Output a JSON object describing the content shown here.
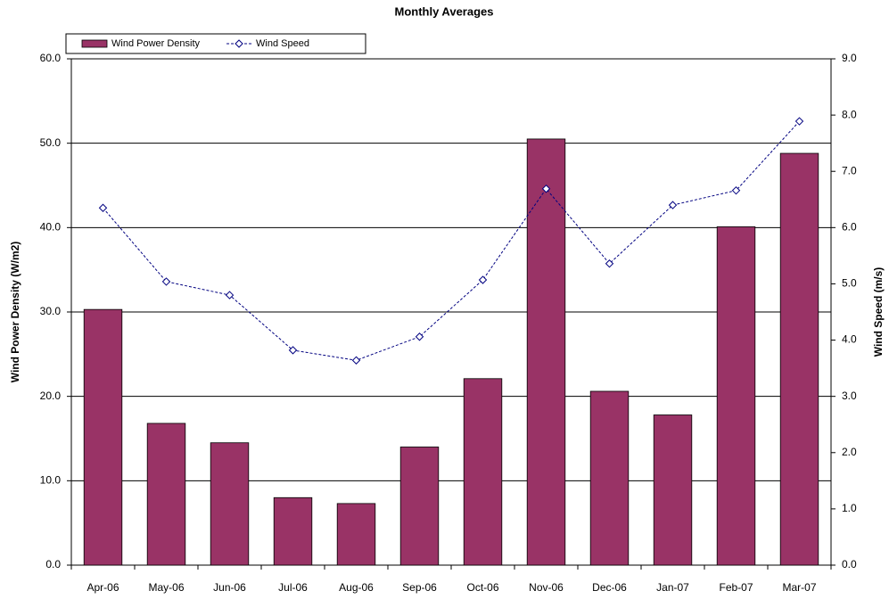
{
  "chart_data": {
    "type": "bar",
    "title": "Monthly Averages",
    "categories": [
      "Apr-06",
      "May-06",
      "Jun-06",
      "Jul-06",
      "Aug-06",
      "Sep-06",
      "Oct-06",
      "Nov-06",
      "Dec-06",
      "Jan-07",
      "Feb-07",
      "Mar-07"
    ],
    "series": [
      {
        "name": "Wind Power Density",
        "type": "bar",
        "color": "#993366",
        "values": [
          30.3,
          16.8,
          14.5,
          8.0,
          7.3,
          14.0,
          22.1,
          50.5,
          20.6,
          17.8,
          40.1,
          48.8
        ]
      },
      {
        "name": "Wind Speed",
        "type": "line",
        "axis": "y2",
        "color": "#000080",
        "marker": "diamond",
        "values": [
          6.35,
          5.04,
          4.8,
          3.82,
          3.64,
          4.06,
          5.07,
          6.69,
          5.36,
          6.4,
          6.66,
          7.89
        ]
      }
    ],
    "ylabel": "Wind Power Density (W/m2)",
    "y2label": "Wind Speed (m/s)",
    "ylim": [
      0,
      60
    ],
    "yticks": [
      {
        "value": 0,
        "label": "0.0"
      },
      {
        "value": 10,
        "label": "10.0"
      },
      {
        "value": 20,
        "label": "20.0"
      },
      {
        "value": 30,
        "label": "30.0"
      },
      {
        "value": 40,
        "label": "40.0"
      },
      {
        "value": 50,
        "label": "50.0"
      },
      {
        "value": 60,
        "label": "60.0"
      }
    ],
    "y2lim": [
      0,
      9
    ],
    "y2ticks": [
      {
        "value": 0,
        "label": "0.0"
      },
      {
        "value": 1,
        "label": "1.0"
      },
      {
        "value": 2,
        "label": "2.0"
      },
      {
        "value": 3,
        "label": "3.0"
      },
      {
        "value": 4,
        "label": "4.0"
      },
      {
        "value": 5,
        "label": "5.0"
      },
      {
        "value": 6,
        "label": "6.0"
      },
      {
        "value": 7,
        "label": "7.0"
      },
      {
        "value": 8,
        "label": "8.0"
      },
      {
        "value": 9,
        "label": "9.0"
      }
    ],
    "grid": true,
    "legend": "upper left"
  }
}
